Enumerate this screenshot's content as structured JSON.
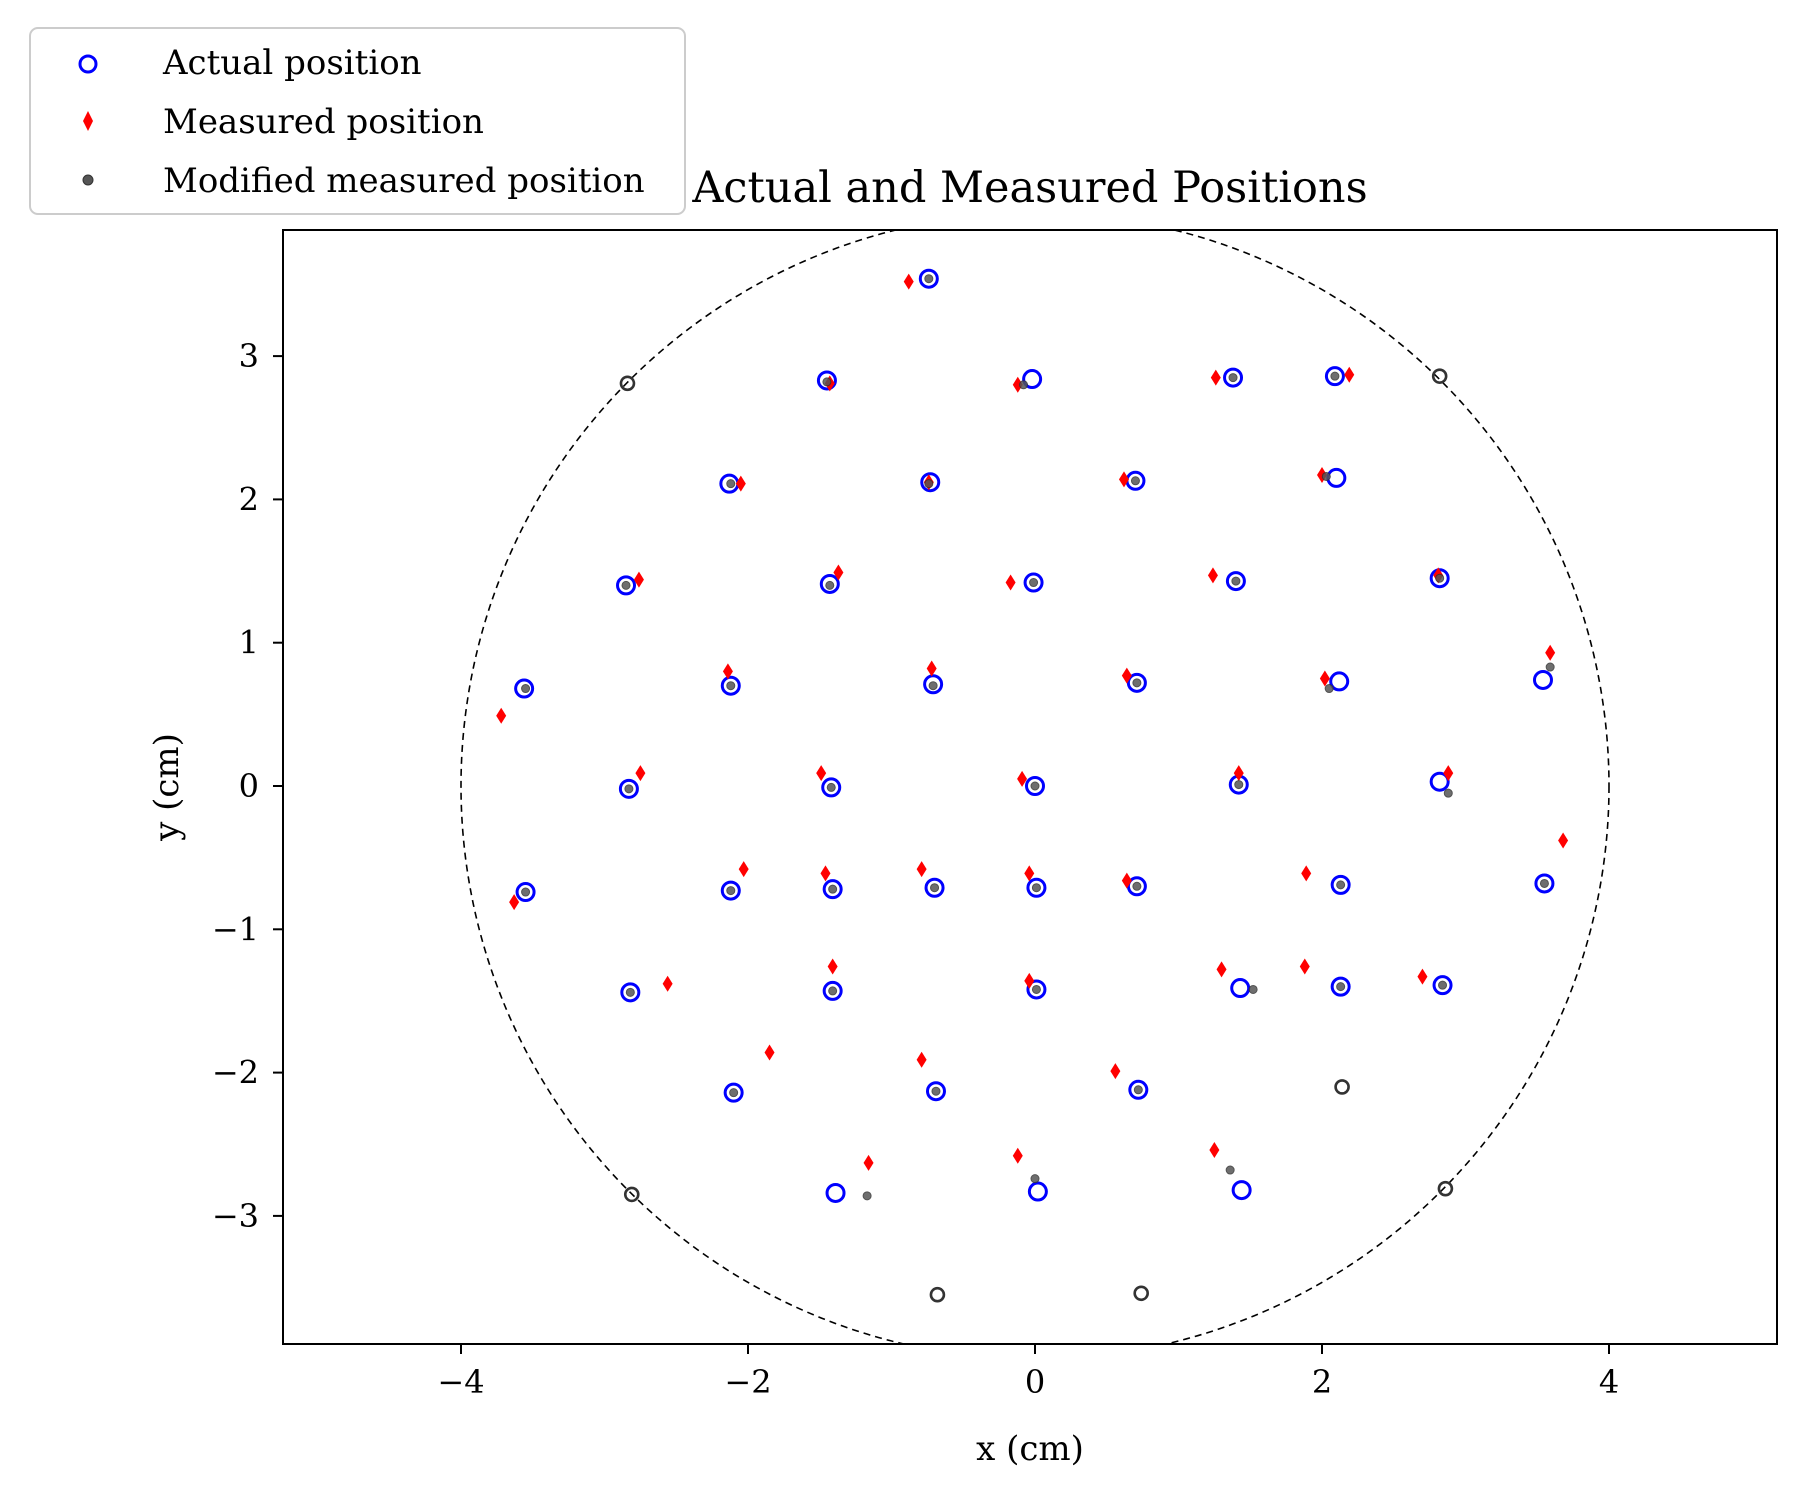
{
  "chart_data": {
    "type": "scatter",
    "title": "Actual and Measured Positions",
    "xlabel": "x (cm)",
    "ylabel": "y (cm)",
    "xlim": [
      -5.25,
      5.25
    ],
    "ylim": [
      -3.9,
      3.9
    ],
    "xticks": [
      -4,
      -2,
      0,
      2,
      4
    ],
    "yticks": [
      -3,
      -2,
      -1,
      0,
      1,
      2,
      3
    ],
    "xtick_labels": [
      "−4",
      "−2",
      "0",
      "2",
      "4"
    ],
    "ytick_labels": [
      "−3",
      "−2",
      "−1",
      "0",
      "1",
      "2",
      "3"
    ],
    "grid": false,
    "legend": {
      "placement": "upper-left, outside plot",
      "entries": [
        "Actual position",
        "Measured position",
        "Modified measured position"
      ]
    },
    "boundary_circle": {
      "center": [
        0,
        0
      ],
      "radius": 4.0,
      "style": "dashed",
      "color": "#000000"
    },
    "colors": {
      "actual": "#0000ff",
      "measured": "#ff0000",
      "modified": "#555555",
      "unmatched": "#333333"
    },
    "series": [
      {
        "name": "Actual position",
        "marker": "open-circle",
        "points": [
          [
            -0.74,
            3.54
          ],
          [
            -1.45,
            2.83
          ],
          [
            -0.02,
            2.84
          ],
          [
            1.38,
            2.85
          ],
          [
            2.09,
            2.86
          ],
          [
            -2.13,
            2.11
          ],
          [
            -0.73,
            2.12
          ],
          [
            0.7,
            2.13
          ],
          [
            2.1,
            2.15
          ],
          [
            -2.85,
            1.4
          ],
          [
            -1.43,
            1.41
          ],
          [
            -0.01,
            1.42
          ],
          [
            1.4,
            1.43
          ],
          [
            2.82,
            1.45
          ],
          [
            -3.56,
            0.68
          ],
          [
            -2.12,
            0.7
          ],
          [
            -0.71,
            0.71
          ],
          [
            0.71,
            0.72
          ],
          [
            2.12,
            0.73
          ],
          [
            3.54,
            0.74
          ],
          [
            -2.83,
            -0.02
          ],
          [
            -1.42,
            -0.01
          ],
          [
            0.0,
            0.0
          ],
          [
            1.42,
            0.01
          ],
          [
            2.82,
            0.03
          ],
          [
            -3.55,
            -0.74
          ],
          [
            -2.12,
            -0.73
          ],
          [
            -1.41,
            -0.72
          ],
          [
            -0.7,
            -0.71
          ],
          [
            0.01,
            -0.71
          ],
          [
            0.71,
            -0.7
          ],
          [
            2.13,
            -0.69
          ],
          [
            3.55,
            -0.68
          ],
          [
            -2.82,
            -1.44
          ],
          [
            -1.41,
            -1.43
          ],
          [
            0.01,
            -1.42
          ],
          [
            1.43,
            -1.41
          ],
          [
            2.13,
            -1.4
          ],
          [
            2.84,
            -1.39
          ],
          [
            -2.1,
            -2.14
          ],
          [
            -0.69,
            -2.13
          ],
          [
            0.72,
            -2.12
          ],
          [
            -1.39,
            -2.84
          ],
          [
            0.02,
            -2.83
          ],
          [
            1.44,
            -2.82
          ]
        ]
      },
      {
        "name": "Measured position",
        "marker": "filled-thin-diamond",
        "points": [
          [
            -0.88,
            3.52
          ],
          [
            -1.43,
            2.81
          ],
          [
            -0.12,
            2.8
          ],
          [
            1.26,
            2.85
          ],
          [
            2.19,
            2.87
          ],
          [
            -2.05,
            2.11
          ],
          [
            -0.74,
            2.12
          ],
          [
            0.62,
            2.14
          ],
          [
            2.0,
            2.17
          ],
          [
            -2.76,
            1.44
          ],
          [
            -1.37,
            1.49
          ],
          [
            -0.17,
            1.42
          ],
          [
            1.24,
            1.47
          ],
          [
            2.81,
            1.47
          ],
          [
            -3.72,
            0.49
          ],
          [
            -2.14,
            0.8
          ],
          [
            -0.72,
            0.82
          ],
          [
            0.64,
            0.77
          ],
          [
            2.02,
            0.75
          ],
          [
            3.59,
            0.93
          ],
          [
            -2.75,
            0.09
          ],
          [
            -1.49,
            0.09
          ],
          [
            -0.09,
            0.05
          ],
          [
            1.42,
            0.09
          ],
          [
            2.88,
            0.09
          ],
          [
            -3.63,
            -0.81
          ],
          [
            -2.03,
            -0.58
          ],
          [
            -1.46,
            -0.61
          ],
          [
            -0.79,
            -0.58
          ],
          [
            -0.04,
            -0.61
          ],
          [
            0.64,
            -0.66
          ],
          [
            1.89,
            -0.61
          ],
          [
            3.68,
            -0.38
          ],
          [
            -2.56,
            -1.38
          ],
          [
            -1.41,
            -1.26
          ],
          [
            -0.04,
            -1.36
          ],
          [
            1.3,
            -1.28
          ],
          [
            1.88,
            -1.26
          ],
          [
            2.7,
            -1.33
          ],
          [
            -1.85,
            -1.86
          ],
          [
            -0.79,
            -1.91
          ],
          [
            0.56,
            -1.99
          ],
          [
            -1.16,
            -2.63
          ],
          [
            -0.12,
            -2.58
          ],
          [
            1.25,
            -2.54
          ]
        ]
      },
      {
        "name": "Modified measured position",
        "marker": "small-filled-circle",
        "points": [
          [
            -0.74,
            3.54
          ],
          [
            -1.45,
            2.82
          ],
          [
            -0.08,
            2.8
          ],
          [
            1.38,
            2.85
          ],
          [
            2.09,
            2.86
          ],
          [
            -2.12,
            2.11
          ],
          [
            -0.74,
            2.11
          ],
          [
            0.7,
            2.13
          ],
          [
            2.03,
            2.16
          ],
          [
            -2.85,
            1.4
          ],
          [
            -1.43,
            1.4
          ],
          [
            -0.01,
            1.42
          ],
          [
            1.4,
            1.43
          ],
          [
            2.82,
            1.45
          ],
          [
            -3.55,
            0.68
          ],
          [
            -2.12,
            0.7
          ],
          [
            -0.71,
            0.7
          ],
          [
            0.71,
            0.72
          ],
          [
            2.05,
            0.68
          ],
          [
            3.59,
            0.83
          ],
          [
            -2.83,
            -0.02
          ],
          [
            -1.42,
            -0.01
          ],
          [
            0.0,
            0.0
          ],
          [
            1.42,
            0.01
          ],
          [
            2.88,
            -0.05
          ],
          [
            -3.55,
            -0.74
          ],
          [
            -2.12,
            -0.73
          ],
          [
            -1.41,
            -0.72
          ],
          [
            -0.7,
            -0.71
          ],
          [
            0.01,
            -0.71
          ],
          [
            0.71,
            -0.7
          ],
          [
            2.13,
            -0.69
          ],
          [
            3.55,
            -0.68
          ],
          [
            -2.82,
            -1.44
          ],
          [
            -1.41,
            -1.43
          ],
          [
            0.01,
            -1.42
          ],
          [
            1.52,
            -1.42
          ],
          [
            2.13,
            -1.4
          ],
          [
            2.84,
            -1.39
          ],
          [
            -2.1,
            -2.14
          ],
          [
            -0.69,
            -2.13
          ],
          [
            0.72,
            -2.12
          ],
          [
            -1.17,
            -2.86
          ],
          [
            0.0,
            -2.74
          ],
          [
            1.36,
            -2.68
          ]
        ]
      },
      {
        "marker": "open-circle-dark",
        "points": [
          [
            -2.84,
            2.81
          ],
          [
            2.82,
            2.86
          ],
          [
            -2.81,
            -2.85
          ],
          [
            2.86,
            -2.81
          ],
          [
            -0.68,
            -3.55
          ],
          [
            0.74,
            -3.54
          ],
          [
            2.14,
            -2.1
          ]
        ]
      }
    ]
  }
}
